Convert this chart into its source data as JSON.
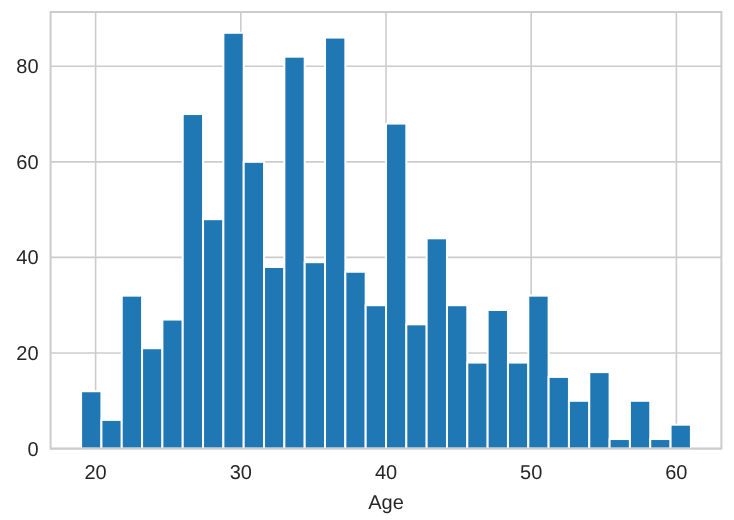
{
  "chart_data": {
    "type": "histogram",
    "xlabel": "Age",
    "bins": [
      19,
      20.4,
      21.8,
      23.2,
      24.6,
      26,
      27.4,
      28.8,
      30.2,
      31.6,
      33,
      34.4,
      35.8,
      37.2,
      38.6,
      40,
      41.4,
      42.8,
      44.2,
      45.6,
      47,
      48.4,
      49.8,
      51.2,
      52.6,
      54,
      55.4,
      56.8,
      58.2,
      59.6,
      61
    ],
    "values": [
      12,
      6,
      32,
      21,
      27,
      70,
      48,
      87,
      60,
      38,
      82,
      39,
      86,
      37,
      30,
      68,
      26,
      44,
      30,
      18,
      29,
      18,
      32,
      15,
      10,
      16,
      2,
      10,
      2,
      5
    ],
    "color": "#1f77b4",
    "xlim": [
      16.9,
      63.1
    ],
    "xticks": [
      20,
      30,
      40,
      50,
      60
    ],
    "ylim": [
      0,
      91.35
    ],
    "yticks": [
      0,
      20,
      40,
      60,
      80
    ],
    "grid": true
  }
}
